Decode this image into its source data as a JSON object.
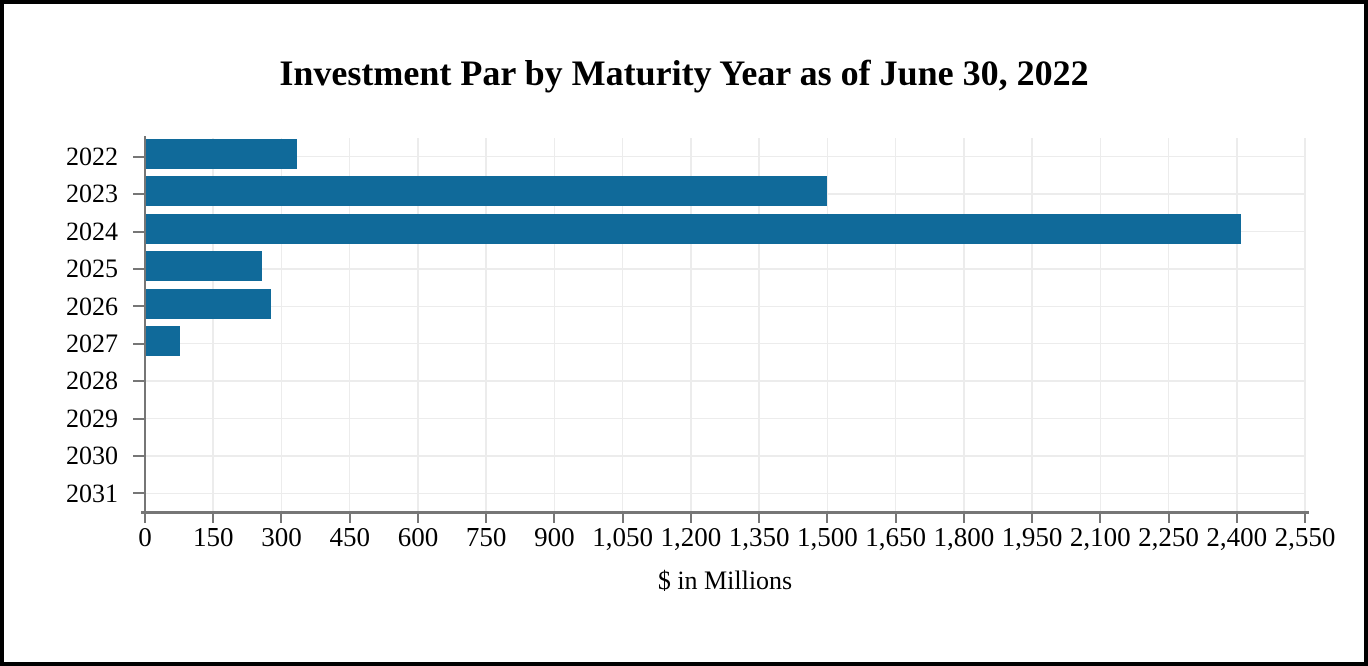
{
  "chart_data": {
    "type": "bar",
    "orientation": "horizontal",
    "title": "Investment Par by Maturity Year as of June 30, 2022",
    "xlabel": "$ in Millions",
    "categories": [
      "2022",
      "2023",
      "2024",
      "2025",
      "2026",
      "2027",
      "2028",
      "2029",
      "2030",
      "2031"
    ],
    "values": [
      335,
      1500,
      2410,
      258,
      278,
      76,
      0,
      0,
      0,
      0
    ],
    "x_tick_labels": [
      "0",
      "150",
      "300",
      "450",
      "600",
      "750",
      "900",
      "1,050",
      "1,200",
      "1,350",
      "1,500",
      "1,650",
      "1,800",
      "1,950",
      "2,100",
      "2,250",
      "2,400",
      "2,550"
    ],
    "xlim": [
      0,
      2550
    ],
    "x_tick_step": 150,
    "legend": "none",
    "grid": "both",
    "bar_color": "#106a9a",
    "gridline_color": "#ececec",
    "axis_color": "#767676",
    "text_color": "#000000",
    "background_color": "#ffffff",
    "border_color": "#000000"
  }
}
